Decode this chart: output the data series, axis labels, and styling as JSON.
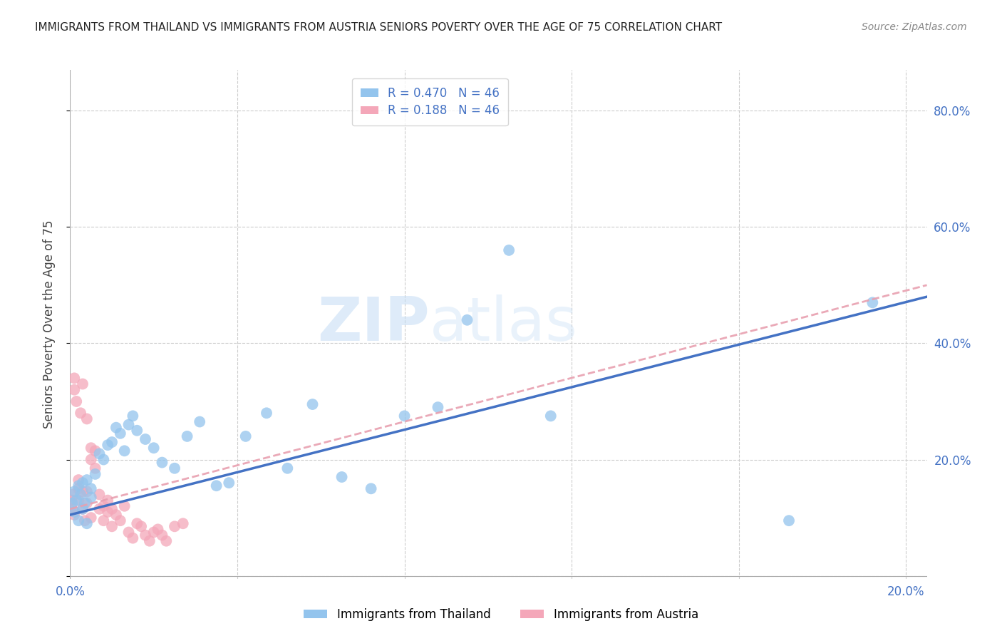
{
  "title": "IMMIGRANTS FROM THAILAND VS IMMIGRANTS FROM AUSTRIA SENIORS POVERTY OVER THE AGE OF 75 CORRELATION CHART",
  "source": "Source: ZipAtlas.com",
  "ylabel": "Seniors Poverty Over the Age of 75",
  "R_thailand": 0.47,
  "N_thailand": 46,
  "R_austria": 0.188,
  "N_austria": 46,
  "xlim": [
    0.0,
    0.205
  ],
  "ylim": [
    -0.005,
    0.87
  ],
  "yticks": [
    0.0,
    0.2,
    0.4,
    0.6,
    0.8
  ],
  "ytick_labels": [
    "",
    "20.0%",
    "40.0%",
    "60.0%",
    "80.0%"
  ],
  "xticks": [
    0.0,
    0.04,
    0.08,
    0.12,
    0.16,
    0.2
  ],
  "xtick_labels": [
    "0.0%",
    "",
    "",
    "",
    "",
    "20.0%"
  ],
  "color_thailand": "#93c4ed",
  "color_austria": "#f4a7b9",
  "line_thailand": "#4472c4",
  "line_austria": "#e8a0b0",
  "background": "#ffffff",
  "watermark_zip": "ZIP",
  "watermark_atlas": "atlas",
  "thailand_x": [
    0.0005,
    0.001,
    0.001,
    0.0015,
    0.002,
    0.002,
    0.0025,
    0.003,
    0.003,
    0.0035,
    0.004,
    0.004,
    0.005,
    0.005,
    0.006,
    0.007,
    0.008,
    0.009,
    0.01,
    0.011,
    0.012,
    0.013,
    0.014,
    0.015,
    0.016,
    0.018,
    0.02,
    0.022,
    0.025,
    0.028,
    0.031,
    0.035,
    0.038,
    0.042,
    0.047,
    0.052,
    0.058,
    0.065,
    0.072,
    0.08,
    0.088,
    0.095,
    0.105,
    0.115,
    0.172,
    0.192
  ],
  "thailand_y": [
    0.125,
    0.11,
    0.145,
    0.13,
    0.095,
    0.155,
    0.14,
    0.115,
    0.16,
    0.125,
    0.09,
    0.165,
    0.135,
    0.15,
    0.175,
    0.21,
    0.2,
    0.225,
    0.23,
    0.255,
    0.245,
    0.215,
    0.26,
    0.275,
    0.25,
    0.235,
    0.22,
    0.195,
    0.185,
    0.24,
    0.265,
    0.155,
    0.16,
    0.24,
    0.28,
    0.185,
    0.295,
    0.17,
    0.15,
    0.275,
    0.29,
    0.44,
    0.56,
    0.275,
    0.095,
    0.47
  ],
  "austria_x": [
    0.0003,
    0.0005,
    0.0007,
    0.001,
    0.001,
    0.001,
    0.0015,
    0.002,
    0.002,
    0.002,
    0.0025,
    0.003,
    0.003,
    0.003,
    0.0035,
    0.004,
    0.004,
    0.004,
    0.005,
    0.005,
    0.005,
    0.006,
    0.006,
    0.007,
    0.007,
    0.008,
    0.008,
    0.009,
    0.009,
    0.01,
    0.01,
    0.011,
    0.012,
    0.013,
    0.014,
    0.015,
    0.016,
    0.017,
    0.018,
    0.019,
    0.02,
    0.021,
    0.022,
    0.023,
    0.025,
    0.027
  ],
  "austria_y": [
    0.13,
    0.115,
    0.14,
    0.32,
    0.34,
    0.105,
    0.3,
    0.165,
    0.13,
    0.15,
    0.28,
    0.33,
    0.115,
    0.145,
    0.095,
    0.27,
    0.125,
    0.145,
    0.22,
    0.2,
    0.1,
    0.215,
    0.185,
    0.14,
    0.115,
    0.12,
    0.095,
    0.13,
    0.11,
    0.085,
    0.115,
    0.105,
    0.095,
    0.12,
    0.075,
    0.065,
    0.09,
    0.085,
    0.07,
    0.06,
    0.075,
    0.08,
    0.07,
    0.06,
    0.085,
    0.09
  ],
  "line_th_x0": 0.0,
  "line_th_x1": 0.205,
  "line_th_y0": 0.105,
  "line_th_y1": 0.48,
  "line_at_x0": 0.0,
  "line_at_x1": 0.205,
  "line_at_y0": 0.115,
  "line_at_y1": 0.5
}
